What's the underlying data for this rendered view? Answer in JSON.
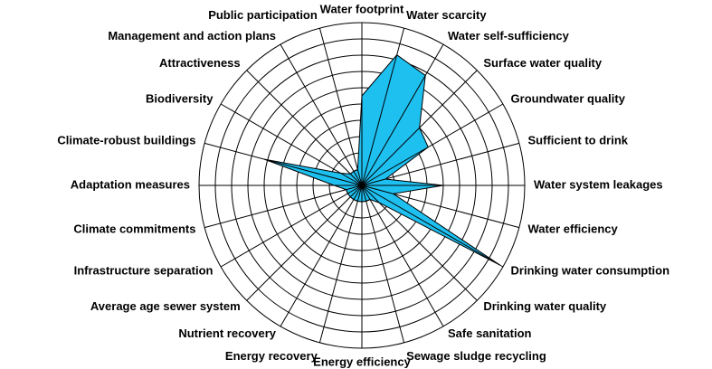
{
  "chart_data": {
    "type": "radar",
    "categories": [
      "Water footprint",
      "Water scarcity",
      "Water self-sufficiency",
      "Surface water quality",
      "Groundwater quality",
      "Sufficient to drink",
      "Water system leakages",
      "Water efficiency",
      "Drinking water consumption",
      "Drinking water quality",
      "Safe sanitation",
      "Sewage sludge recycling",
      "Energy efficiency",
      "Energy recovery",
      "Nutrient recovery",
      "Average age sewer system",
      "Infrastructure separation",
      "Climate commitments",
      "Adaptation measures",
      "Climate-robust buildings",
      "Biodiversity",
      "Attractiveness",
      "Management and action plans",
      "Public participation"
    ],
    "values": [
      5.5,
      8.3,
      7.8,
      5,
      4.7,
      1.5,
      5,
      2,
      9.8,
      1.5,
      1,
      1,
      1,
      1,
      1,
      1,
      1,
      1,
      1.7,
      6.2,
      1.5,
      1,
      1,
      1
    ],
    "color": "#1ec0f0",
    "rlim": [
      0,
      10
    ],
    "rticks": [
      1,
      2,
      3,
      4,
      5,
      6,
      7,
      8,
      9,
      10
    ],
    "grid": true
  }
}
